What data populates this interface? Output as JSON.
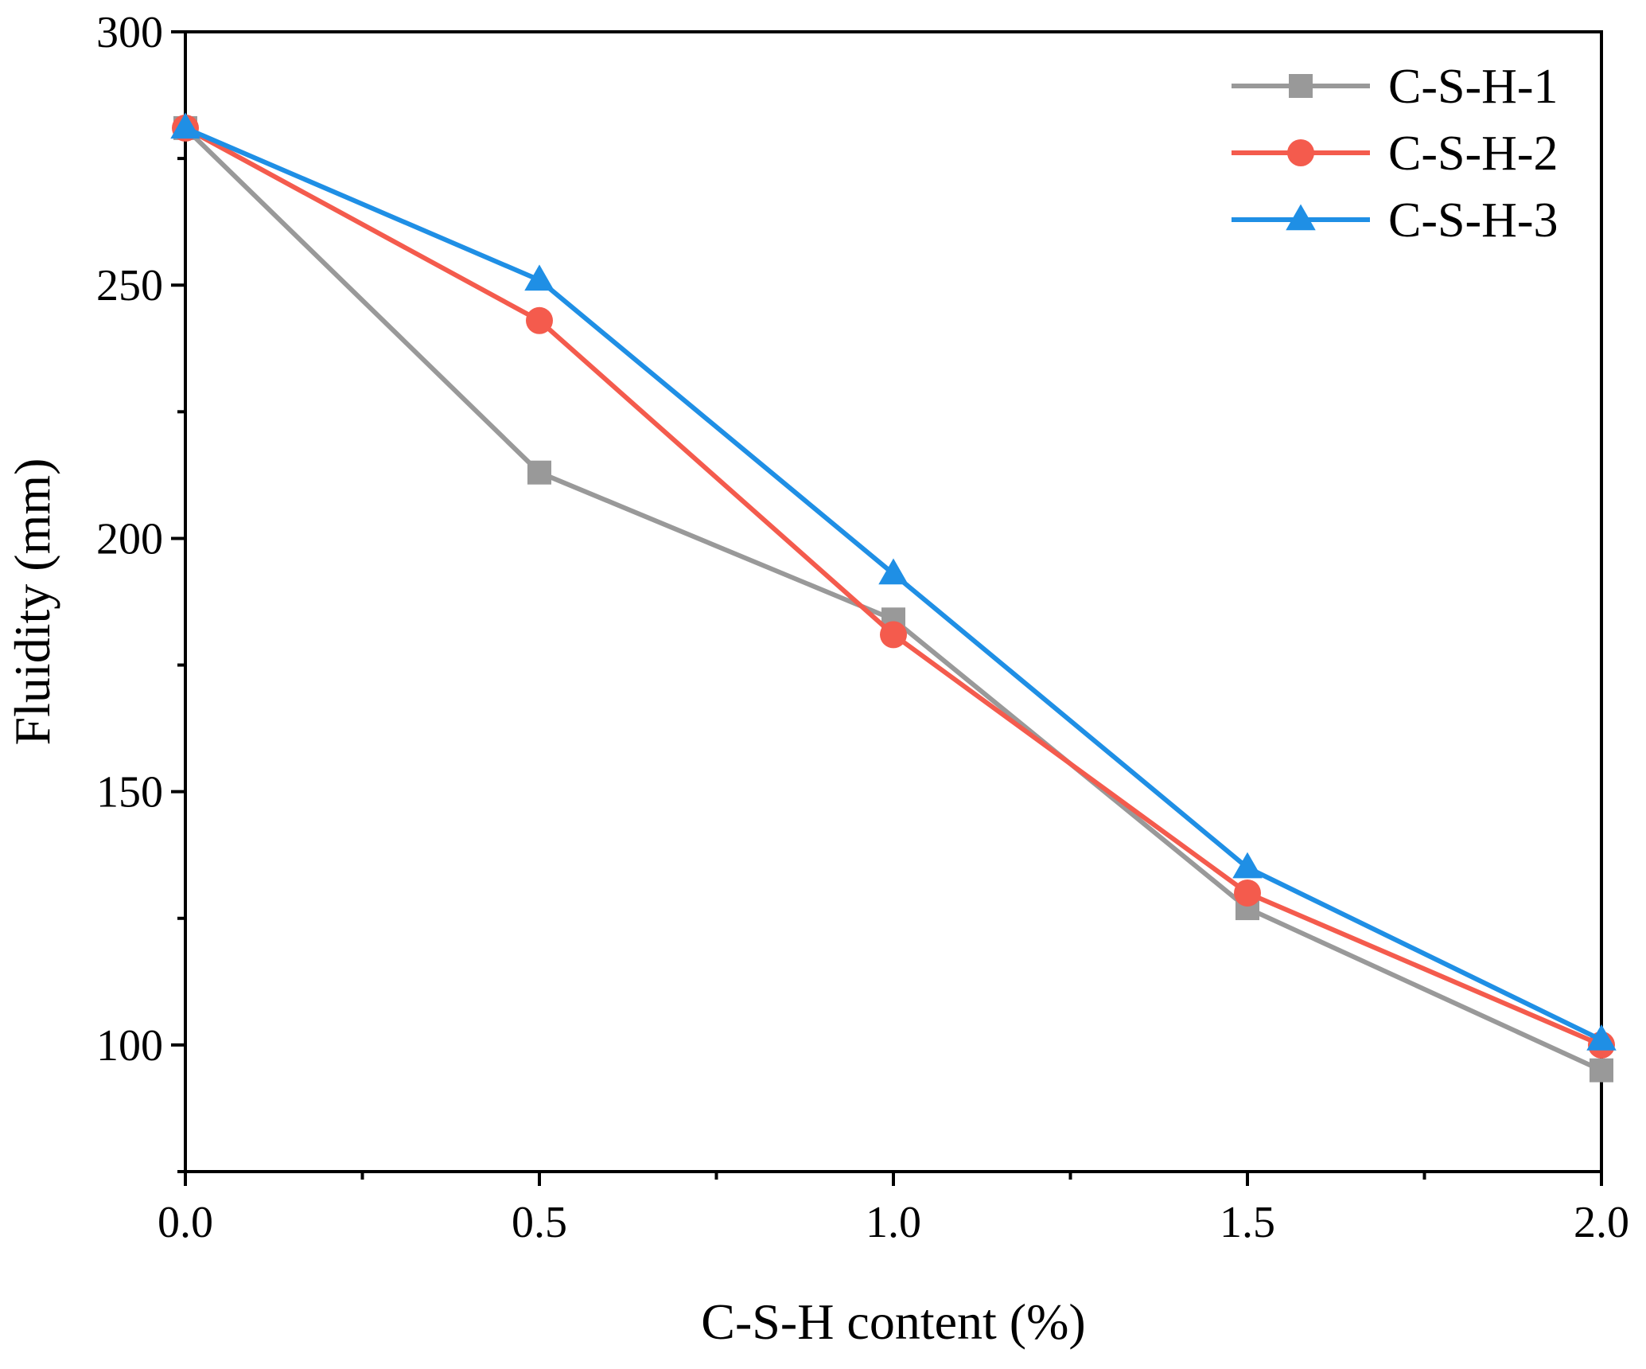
{
  "chart_data": {
    "type": "line",
    "title": "",
    "xlabel": "C-S-H content (%)",
    "ylabel": "Fluidity (mm)",
    "xlim": [
      0.0,
      2.0
    ],
    "ylim": [
      75,
      300
    ],
    "x": [
      0.0,
      0.5,
      1.0,
      1.5,
      2.0
    ],
    "x_tick_labels": [
      "0.0",
      "0.5",
      "1.0",
      "1.5",
      "2.0"
    ],
    "y_ticks": [
      100,
      150,
      200,
      250,
      300
    ],
    "y_tick_labels": [
      "100",
      "150",
      "200",
      "250",
      "300"
    ],
    "grid": false,
    "legend_position": "top-right",
    "series": [
      {
        "name": "C-S-H-1",
        "color": "#999999",
        "marker": "square",
        "values": [
          281,
          213,
          184,
          127,
          95
        ]
      },
      {
        "name": "C-S-H-2",
        "color": "#f45b4d",
        "marker": "circle",
        "values": [
          281,
          243,
          181,
          130,
          100
        ]
      },
      {
        "name": "C-S-H-3",
        "color": "#1f8fe5",
        "marker": "triangle",
        "values": [
          281,
          251,
          193,
          135,
          101
        ]
      }
    ]
  }
}
